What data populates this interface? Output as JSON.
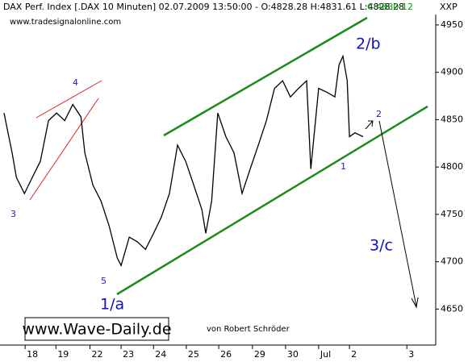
{
  "chart_data": {
    "type": "line",
    "title": "DAX Perf. Index [.DAX  10 Minuten] 02.07.2009 13:50:00 - O:4828.28 H:4831.61 L:4828.28",
    "close_label": "C:4830.12",
    "axis_tag": "XXP",
    "source": "www.tradesignalonline.com",
    "brand": "www.Wave-Daily.de",
    "author": "von Robert Schröder",
    "annotations": [
      "4",
      "3",
      "5",
      "1/a",
      "2/b",
      "1",
      "2",
      "3/c"
    ],
    "color": "#000000",
    "x": [
      -0.65,
      -0.4,
      -0.27,
      -0.02,
      0.22,
      0.47,
      0.72,
      0.97,
      1.22,
      1.47,
      1.72,
      1.84,
      2.09,
      2.34,
      2.59,
      2.84,
      2.96,
      3.21,
      3.46,
      3.71,
      3.96,
      4.2,
      4.45,
      4.7,
      4.95,
      5.2,
      5.45,
      5.57,
      5.75,
      5.94,
      6.19,
      6.44,
      6.69,
      6.94,
      7.19,
      7.44,
      7.69,
      7.94,
      8.18,
      8.43,
      8.68,
      8.81,
      9.05,
      9.3,
      9.55,
      9.68,
      9.8,
      9.93,
      10.0,
      10.17,
      10.42
    ],
    "values": [
      4857,
      4815,
      4789,
      4772,
      4789,
      4806,
      4849,
      4857,
      4849,
      4866,
      4853,
      4815,
      4781,
      4764,
      4738,
      4704,
      4696,
      4726,
      4721,
      4713,
      4730,
      4747,
      4772,
      4823,
      4806,
      4781,
      4755,
      4730,
      4764,
      4857,
      4832,
      4815,
      4772,
      4798,
      4823,
      4849,
      4883,
      4891,
      4874,
      4883,
      4891,
      4798,
      4883,
      4879,
      4874,
      4908,
      4917,
      4891,
      4832,
      4836,
      4832
    ],
    "xlim": [
      -0.65,
      12.66
    ],
    "xticks": [
      {
        "value": 0,
        "label": "18"
      },
      {
        "value": 0.95,
        "label": "19"
      },
      {
        "value": 2.0,
        "label": "22"
      },
      {
        "value": 2.96,
        "label": "23"
      },
      {
        "value": 3.96,
        "label": "24"
      },
      {
        "value": 4.97,
        "label": "25"
      },
      {
        "value": 5.97,
        "label": "26"
      },
      {
        "value": 7.01,
        "label": "29"
      },
      {
        "value": 8.03,
        "label": "30"
      },
      {
        "value": 9.05,
        "label": "Jul"
      },
      {
        "value": 10.0,
        "label": "2"
      },
      {
        "value": 11.77,
        "label": "3"
      }
    ],
    "ylim": [
      4612,
      4961
    ],
    "yticks": [
      4650,
      4700,
      4750,
      4800,
      4850,
      4900,
      4950
    ],
    "grid": false
  }
}
